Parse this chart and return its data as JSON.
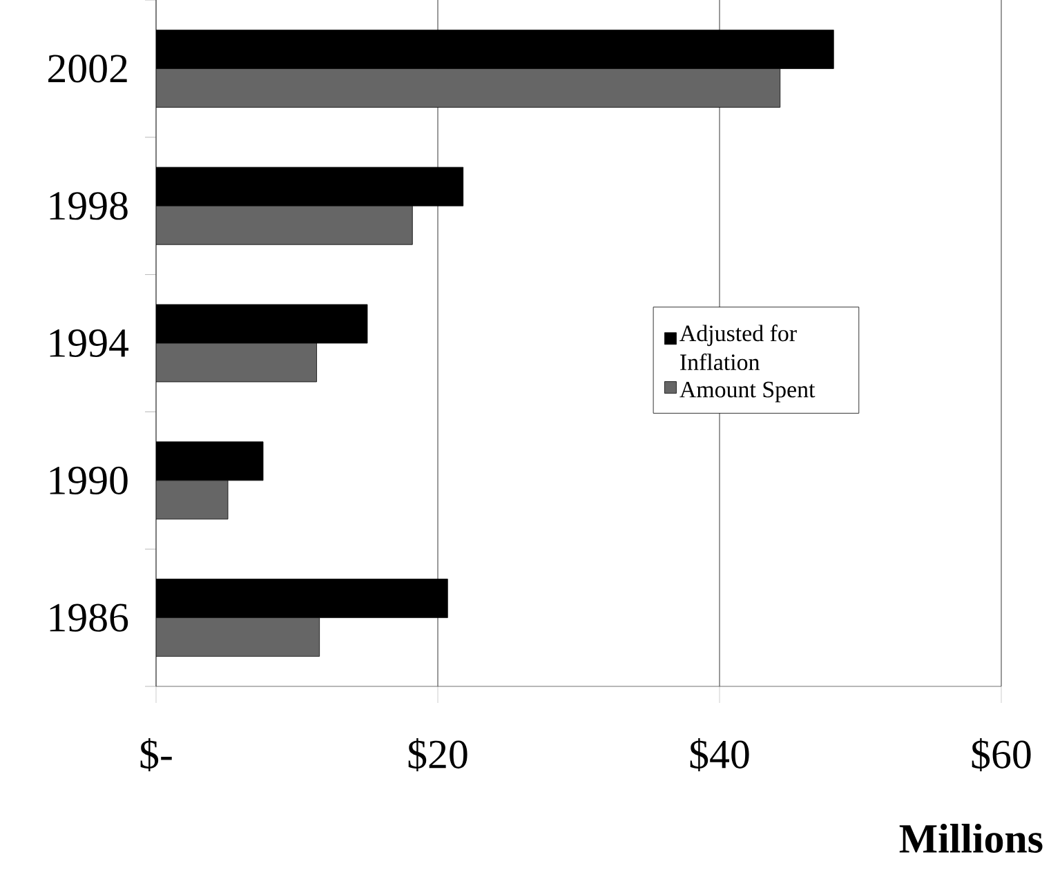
{
  "chart_data": {
    "type": "bar",
    "orientation": "horizontal",
    "xlabel": "Millions",
    "categories": [
      "2002",
      "1998",
      "1994",
      "1990",
      "1986"
    ],
    "series": [
      {
        "name": "Adjusted for Inflation",
        "color": "#000000",
        "values": [
          48.1,
          21.8,
          15.0,
          7.6,
          20.7
        ]
      },
      {
        "name": "Amount Spent",
        "color": "#666666",
        "values": [
          44.3,
          18.2,
          11.4,
          5.1,
          11.6
        ]
      }
    ],
    "xlim": [
      0,
      60
    ],
    "xticks": [
      {
        "value": 0,
        "label": "$-"
      },
      {
        "value": 20,
        "label": "$20"
      },
      {
        "value": 40,
        "label": "$40"
      },
      {
        "value": 60,
        "label": "$60"
      }
    ],
    "grid": "x",
    "legend": "right"
  }
}
